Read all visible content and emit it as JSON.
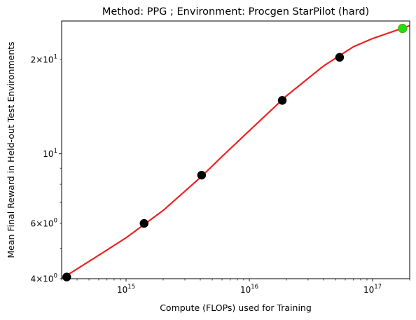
{
  "chart_data": {
    "type": "scatter",
    "title": "Method: PPG ; Environment: Procgen StarPilot (hard)",
    "xlabel": "Compute (FLOPs) used for Training",
    "ylabel": "Mean Final Reward in Held-out Test Environments",
    "xscale": "log",
    "yscale": "log",
    "xlim": [
      300000000000000.0,
      2e+17
    ],
    "ylim": [
      4.0,
      26.5
    ],
    "grid": false,
    "legend": "none",
    "x_ticks": [
      {
        "value": 1000000000000000.0,
        "base": "10",
        "exp": "15"
      },
      {
        "value": 1e+16,
        "base": "10",
        "exp": "16"
      },
      {
        "value": 1e+17,
        "base": "10",
        "exp": "17"
      }
    ],
    "y_ticks": [
      {
        "value": 4,
        "mant": "4×10",
        "exp": "0"
      },
      {
        "value": 6,
        "mant": "6×10",
        "exp": "0"
      },
      {
        "value": 10,
        "mant": "10",
        "exp": "1"
      },
      {
        "value": 20,
        "mant": "2×10",
        "exp": "1"
      }
    ],
    "points": [
      {
        "x": 330000000000000.0,
        "y": 4.05
      },
      {
        "x": 1400000000000000.0,
        "y": 6.0
      },
      {
        "x": 4100000000000000.0,
        "y": 8.55
      },
      {
        "x": 1.85e+16,
        "y": 14.8
      },
      {
        "x": 5.4e+16,
        "y": 20.3
      }
    ],
    "highlight_point": {
      "x": 1.75e+17,
      "y": 25.1
    },
    "fit_curve": {
      "x": [
        300000000000000.0,
        600000000000000.0,
        1000000000000000.0,
        2000000000000000.0,
        4000000000000000.0,
        6000000000000000.0,
        1e+16,
        2e+16,
        4e+16,
        7e+16,
        1e+17,
        2e+17
      ],
      "y": [
        4.0,
        4.75,
        5.4,
        6.6,
        8.4,
        9.8,
        11.85,
        15.3,
        19.05,
        21.95,
        23.3,
        25.6
      ]
    },
    "colors": {
      "points": "#000000",
      "highlight": "#22dd11",
      "highlight_edge": "#55aa00",
      "fit": "#ee2222"
    }
  }
}
